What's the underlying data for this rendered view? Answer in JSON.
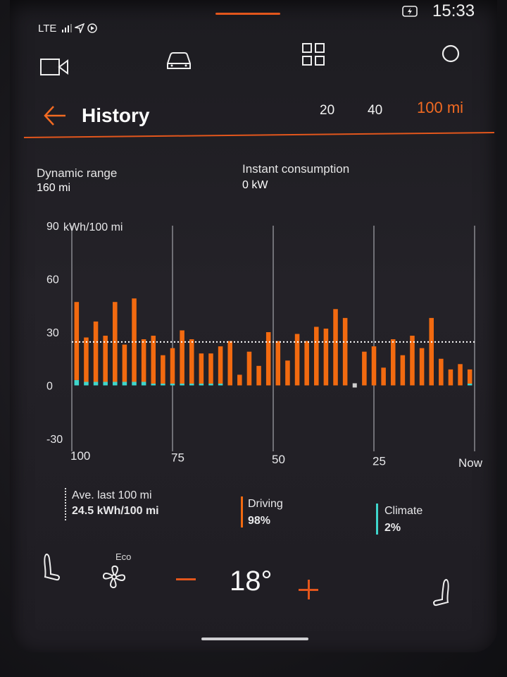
{
  "status": {
    "network": "LTE",
    "time": "15:33"
  },
  "nav_icons": [
    "camera-icon",
    "car-icon",
    "apps-grid-icon",
    "profile-circle-icon"
  ],
  "header": {
    "title": "History",
    "range_options": [
      "20",
      "40",
      "100 mi"
    ],
    "active_range": "100 mi"
  },
  "info": {
    "dynamic_range_label": "Dynamic range",
    "dynamic_range_value": "160 mi",
    "instant_label": "Instant consumption",
    "instant_value": "0 kW"
  },
  "chart_data": {
    "type": "bar",
    "ylabel": "kWh/100 mi",
    "ylim": [
      -30,
      90
    ],
    "yticks": [
      90,
      60,
      30,
      0,
      -30
    ],
    "xticks": [
      "100",
      "75",
      "50",
      "25",
      "Now"
    ],
    "xunit": "mi",
    "average_line": 24.5,
    "series": [
      {
        "name": "Driving",
        "color": "#f26a10",
        "values": [
          44,
          25,
          34,
          26,
          45,
          21,
          47,
          24,
          27,
          16,
          20,
          30,
          25,
          17,
          17,
          21,
          25,
          6,
          19,
          11,
          30,
          25,
          14,
          29,
          25,
          33,
          32,
          43,
          38,
          1,
          19,
          22,
          10,
          26,
          17,
          28,
          21,
          38,
          15,
          9,
          12,
          8
        ]
      },
      {
        "name": "Climate",
        "color": "#3fd6cc",
        "values": [
          3,
          2,
          2,
          2,
          2,
          2,
          2,
          2,
          1,
          1,
          1,
          1,
          1,
          1,
          1,
          1,
          0,
          0,
          0,
          0,
          0,
          0,
          0,
          0,
          0,
          0,
          0,
          0,
          0,
          0,
          0,
          0,
          0,
          0,
          0,
          0,
          0,
          0,
          0,
          0,
          0,
          1
        ]
      }
    ]
  },
  "legend": {
    "average_label": "Ave. last 100 mi",
    "average_value": "24.5 kWh/100 mi",
    "driving_label": "Driving",
    "driving_value": "98%",
    "climate_label": "Climate",
    "climate_value": "2%"
  },
  "climate_controls": {
    "fan_mode": "Eco",
    "temperature": "18°"
  },
  "colors": {
    "accent": "#e2561c",
    "driving": "#f26a10",
    "climate": "#3fd6cc"
  }
}
